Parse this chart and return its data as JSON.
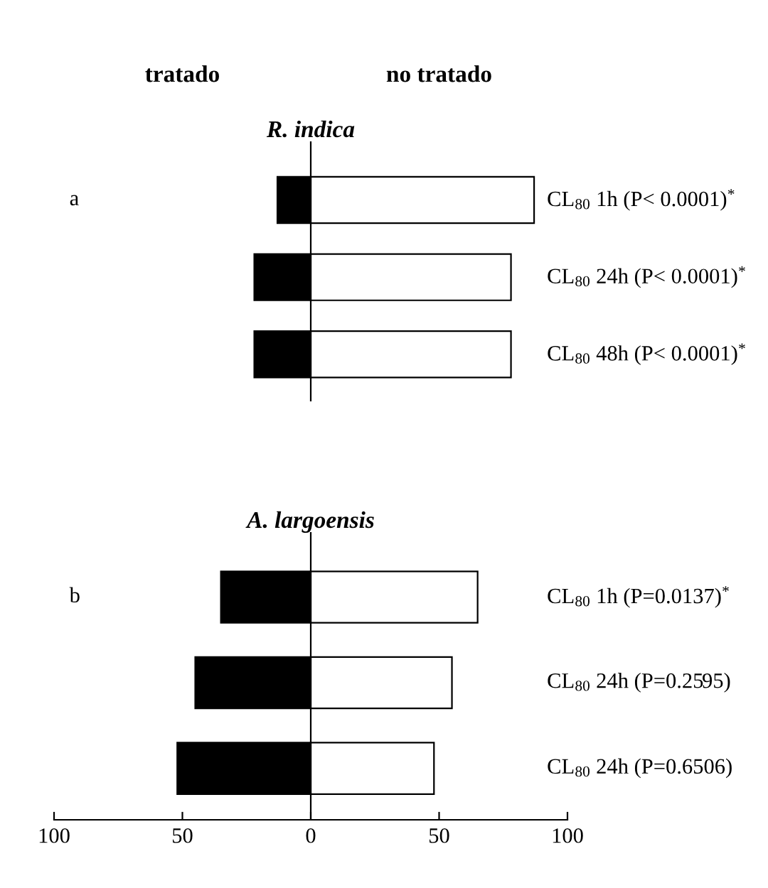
{
  "chart_data": [
    {
      "type": "bar",
      "orientation": "horizontal",
      "stacked": true,
      "title": "R. indica",
      "annotations": [
        "a",
        "tratado",
        "no tratado"
      ],
      "categories": [
        "CL$_{80}$ 1h (P< 0.0001)$^{*}$",
        "CL$_{80}$ 24h (P< 0.0001)$^{*}$",
        "CL$_{80}$ 48h (P< 0.0001)$^{*}$"
      ],
      "series": [
        {
          "color": "#000000",
          "values": [
            -13,
            -22,
            -22
          ]
        },
        {
          "color": "#ffffff",
          "values": [
            87,
            78,
            78
          ]
        }
      ],
      "xlim": [
        -100,
        100
      ],
      "tick_labels": false
    },
    {
      "type": "bar",
      "orientation": "horizontal",
      "stacked": true,
      "title": "A. largoensis",
      "annotations": [
        "b"
      ],
      "categories": [
        "CL$_{80}$ 1h (P=0.0137)$^{*}$",
        "CL$_{80}$ 24h (P=0.2595)",
        "CL$_{80}$ 24h (P=0.6506)"
      ],
      "series": [
        {
          "color": "#000000",
          "values": [
            -35,
            -45,
            -52
          ]
        },
        {
          "color": "#ffffff",
          "values": [
            65,
            55,
            48
          ]
        }
      ],
      "xlim": [
        -100,
        100
      ],
      "xticks": [
        {
          "value": -100,
          "label": "100"
        },
        {
          "value": -50,
          "label": "50"
        },
        0,
        50,
        100
      ],
      "tick_labels": "x"
    }
  ]
}
